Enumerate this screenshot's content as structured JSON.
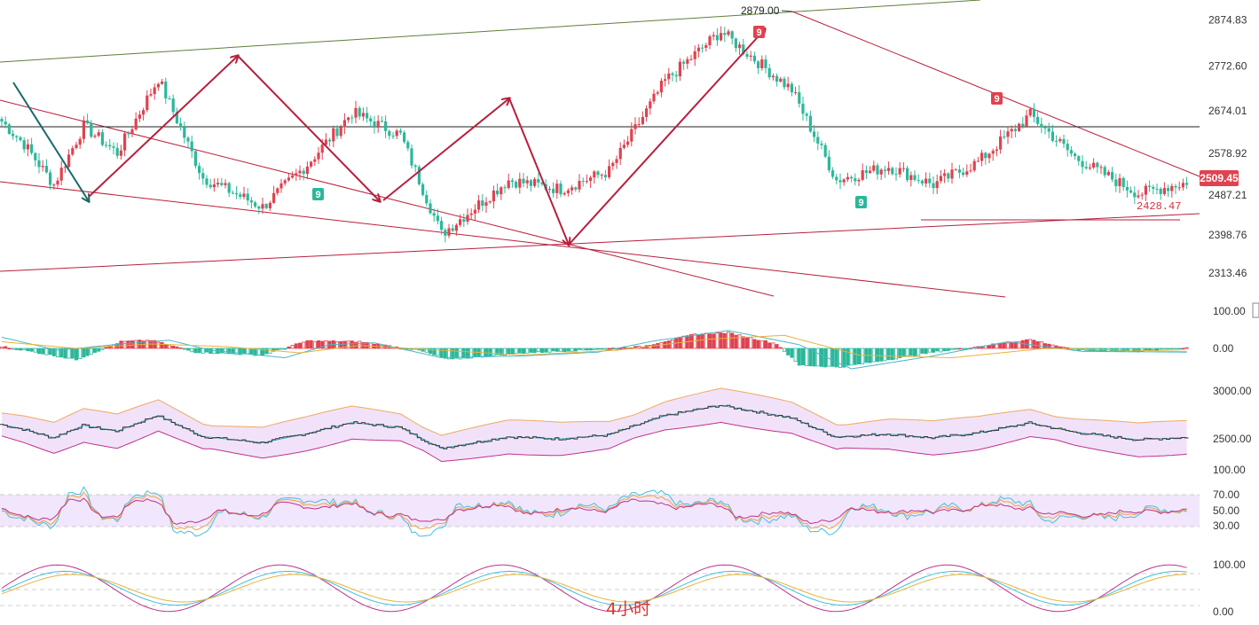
{
  "chart_data": {
    "type": "candlestick",
    "period_label": "4小时",
    "price_axis": {
      "ticks": [
        "2874.83",
        "2772.60",
        "2674.01",
        "2578.92",
        "2487.21",
        "2398.76",
        "2313.46"
      ],
      "range": [
        2300,
        2890
      ]
    },
    "current_price": "2509.45",
    "annotations": {
      "high": "2879.00",
      "support": "2428.47",
      "td_count": "9"
    },
    "colors": {
      "up": "#e0424f",
      "down": "#2bb89a",
      "trend": "#b81f3c",
      "arrow_dark": "#176a6a"
    },
    "price_waypoints": [
      [
        0,
        2650
      ],
      [
        6,
        2600
      ],
      [
        14,
        2510
      ],
      [
        22,
        2640
      ],
      [
        31,
        2580
      ],
      [
        42,
        2745
      ],
      [
        54,
        2525
      ],
      [
        70,
        2460
      ],
      [
        82,
        2555
      ],
      [
        94,
        2670
      ],
      [
        107,
        2620
      ],
      [
        118,
        2400
      ],
      [
        136,
        2520
      ],
      [
        150,
        2500
      ],
      [
        163,
        2540
      ],
      [
        178,
        2740
      ],
      [
        193,
        2850
      ],
      [
        212,
        2720
      ],
      [
        224,
        2520
      ],
      [
        238,
        2550
      ],
      [
        250,
        2510
      ],
      [
        262,
        2560
      ],
      [
        276,
        2665
      ],
      [
        288,
        2570
      ],
      [
        305,
        2490
      ],
      [
        318,
        2515
      ]
    ],
    "panels": [
      {
        "name": "MACD",
        "ticks": [
          "100.00",
          "0.00"
        ],
        "range": [
          -80,
          110
        ],
        "hist_waypoints": [
          [
            0,
            5
          ],
          [
            6,
            -5
          ],
          [
            20,
            -30
          ],
          [
            32,
            18
          ],
          [
            40,
            22
          ],
          [
            52,
            -10
          ],
          [
            70,
            -18
          ],
          [
            82,
            20
          ],
          [
            96,
            18
          ],
          [
            112,
            -5
          ],
          [
            120,
            -30
          ],
          [
            140,
            -12
          ],
          [
            155,
            -5
          ],
          [
            172,
            5
          ],
          [
            186,
            38
          ],
          [
            195,
            42
          ],
          [
            208,
            12
          ],
          [
            214,
            -45
          ],
          [
            225,
            -50
          ],
          [
            235,
            -35
          ],
          [
            250,
            -10
          ],
          [
            262,
            5
          ],
          [
            276,
            24
          ],
          [
            288,
            -5
          ],
          [
            305,
            -8
          ],
          [
            318,
            2
          ]
        ],
        "dif_waypoints": [
          [
            0,
            30
          ],
          [
            15,
            -5
          ],
          [
            32,
            12
          ],
          [
            45,
            22
          ],
          [
            56,
            -5
          ],
          [
            76,
            -25
          ],
          [
            88,
            10
          ],
          [
            100,
            15
          ],
          [
            118,
            -25
          ],
          [
            140,
            -20
          ],
          [
            160,
            -10
          ],
          [
            175,
            20
          ],
          [
            195,
            48
          ],
          [
            214,
            10
          ],
          [
            228,
            -55
          ],
          [
            250,
            -20
          ],
          [
            270,
            18
          ],
          [
            290,
            -8
          ],
          [
            318,
            -10
          ]
        ],
        "dea_waypoints": [
          [
            0,
            18
          ],
          [
            20,
            0
          ],
          [
            40,
            12
          ],
          [
            60,
            5
          ],
          [
            80,
            -12
          ],
          [
            96,
            8
          ],
          [
            118,
            -5
          ],
          [
            140,
            -18
          ],
          [
            165,
            -5
          ],
          [
            190,
            25
          ],
          [
            210,
            35
          ],
          [
            230,
            -18
          ],
          [
            255,
            -25
          ],
          [
            280,
            0
          ],
          [
            318,
            -8
          ]
        ]
      },
      {
        "name": "BOLL",
        "ticks": [
          "3000.00",
          "2500.00",
          "100.00"
        ],
        "range": [
          2350,
          3100
        ]
      },
      {
        "name": "RSI",
        "ticks": [
          "70.00",
          "50.00",
          "30.00"
        ],
        "range": [
          15,
          85
        ]
      },
      {
        "name": "KDJ",
        "ticks": [
          "100.00",
          "0.00"
        ],
        "range": [
          -5,
          115
        ]
      }
    ]
  }
}
